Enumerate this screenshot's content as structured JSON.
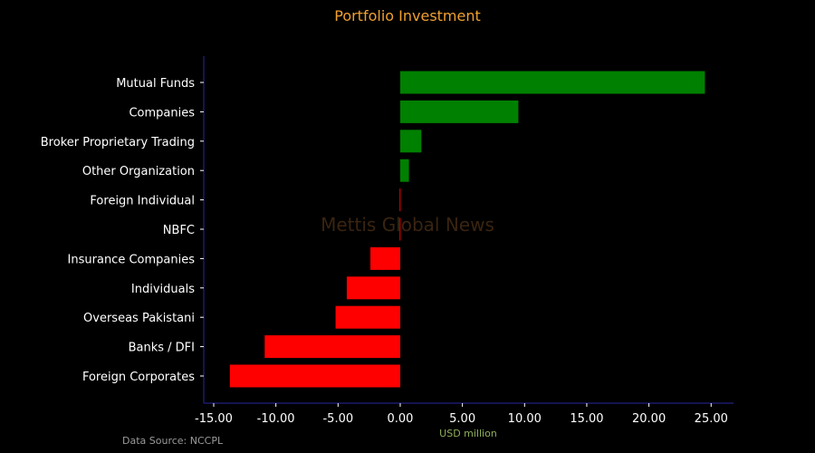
{
  "watermark": "Mettis Global News",
  "source_note": "Data Source: NCCPL",
  "colors": {
    "background": "#000000",
    "title": "#f0a030",
    "positive": "#008000",
    "negative": "#ff0000",
    "axis": "#1a1a6e",
    "tick_label": "#ffffff",
    "x_axis_title": "#8fae5a",
    "source_note": "#9a9a9a",
    "watermark": "#3a2410"
  },
  "chart_data": {
    "type": "bar",
    "orientation": "horizontal",
    "title": "Portfolio Investment",
    "xlabel": "USD million",
    "ylabel": "",
    "categories": [
      "Mutual Funds",
      "Companies",
      "Broker Proprietary Trading",
      "Other Organization",
      "Foreign Individual",
      "NBFC",
      "Insurance Companies",
      "Individuals",
      "Overseas Pakistani",
      "Banks / DFI",
      "Foreign Corporates"
    ],
    "values": [
      24.5,
      9.5,
      1.7,
      0.7,
      -0.05,
      -0.05,
      -2.4,
      -4.3,
      -5.2,
      -10.9,
      -13.7
    ],
    "xlim": [
      -15.8,
      26.8
    ],
    "xticks": [
      -15,
      -10,
      -5,
      0,
      5,
      10,
      15,
      20,
      25
    ],
    "xtick_labels": [
      "-15.00",
      "-10.00",
      "-5.00",
      "0.00",
      "5.00",
      "10.00",
      "15.00",
      "20.00",
      "25.00"
    ],
    "grid": false,
    "legend": "none"
  }
}
